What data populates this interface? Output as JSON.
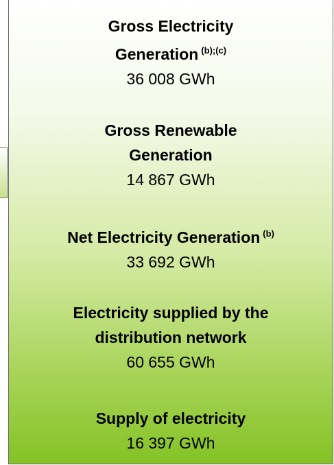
{
  "items": [
    {
      "label_lines": [
        "Gross Electricity",
        "Generation"
      ],
      "note": "(b);(c)",
      "value": "36 008 GWh"
    },
    {
      "label_lines": [
        "Gross Renewable",
        "Generation"
      ],
      "value": "14 867 GWh"
    },
    {
      "label_lines": [
        "Net Electricity Generation"
      ],
      "note": "(b)",
      "value": "33 692 GWh"
    },
    {
      "label_lines": [
        "Electricity supplied by the",
        "distribution network"
      ],
      "value": "60 655 GWh"
    },
    {
      "label_lines": [
        "Supply of electricity"
      ],
      "value": "16 397 GWh"
    }
  ]
}
